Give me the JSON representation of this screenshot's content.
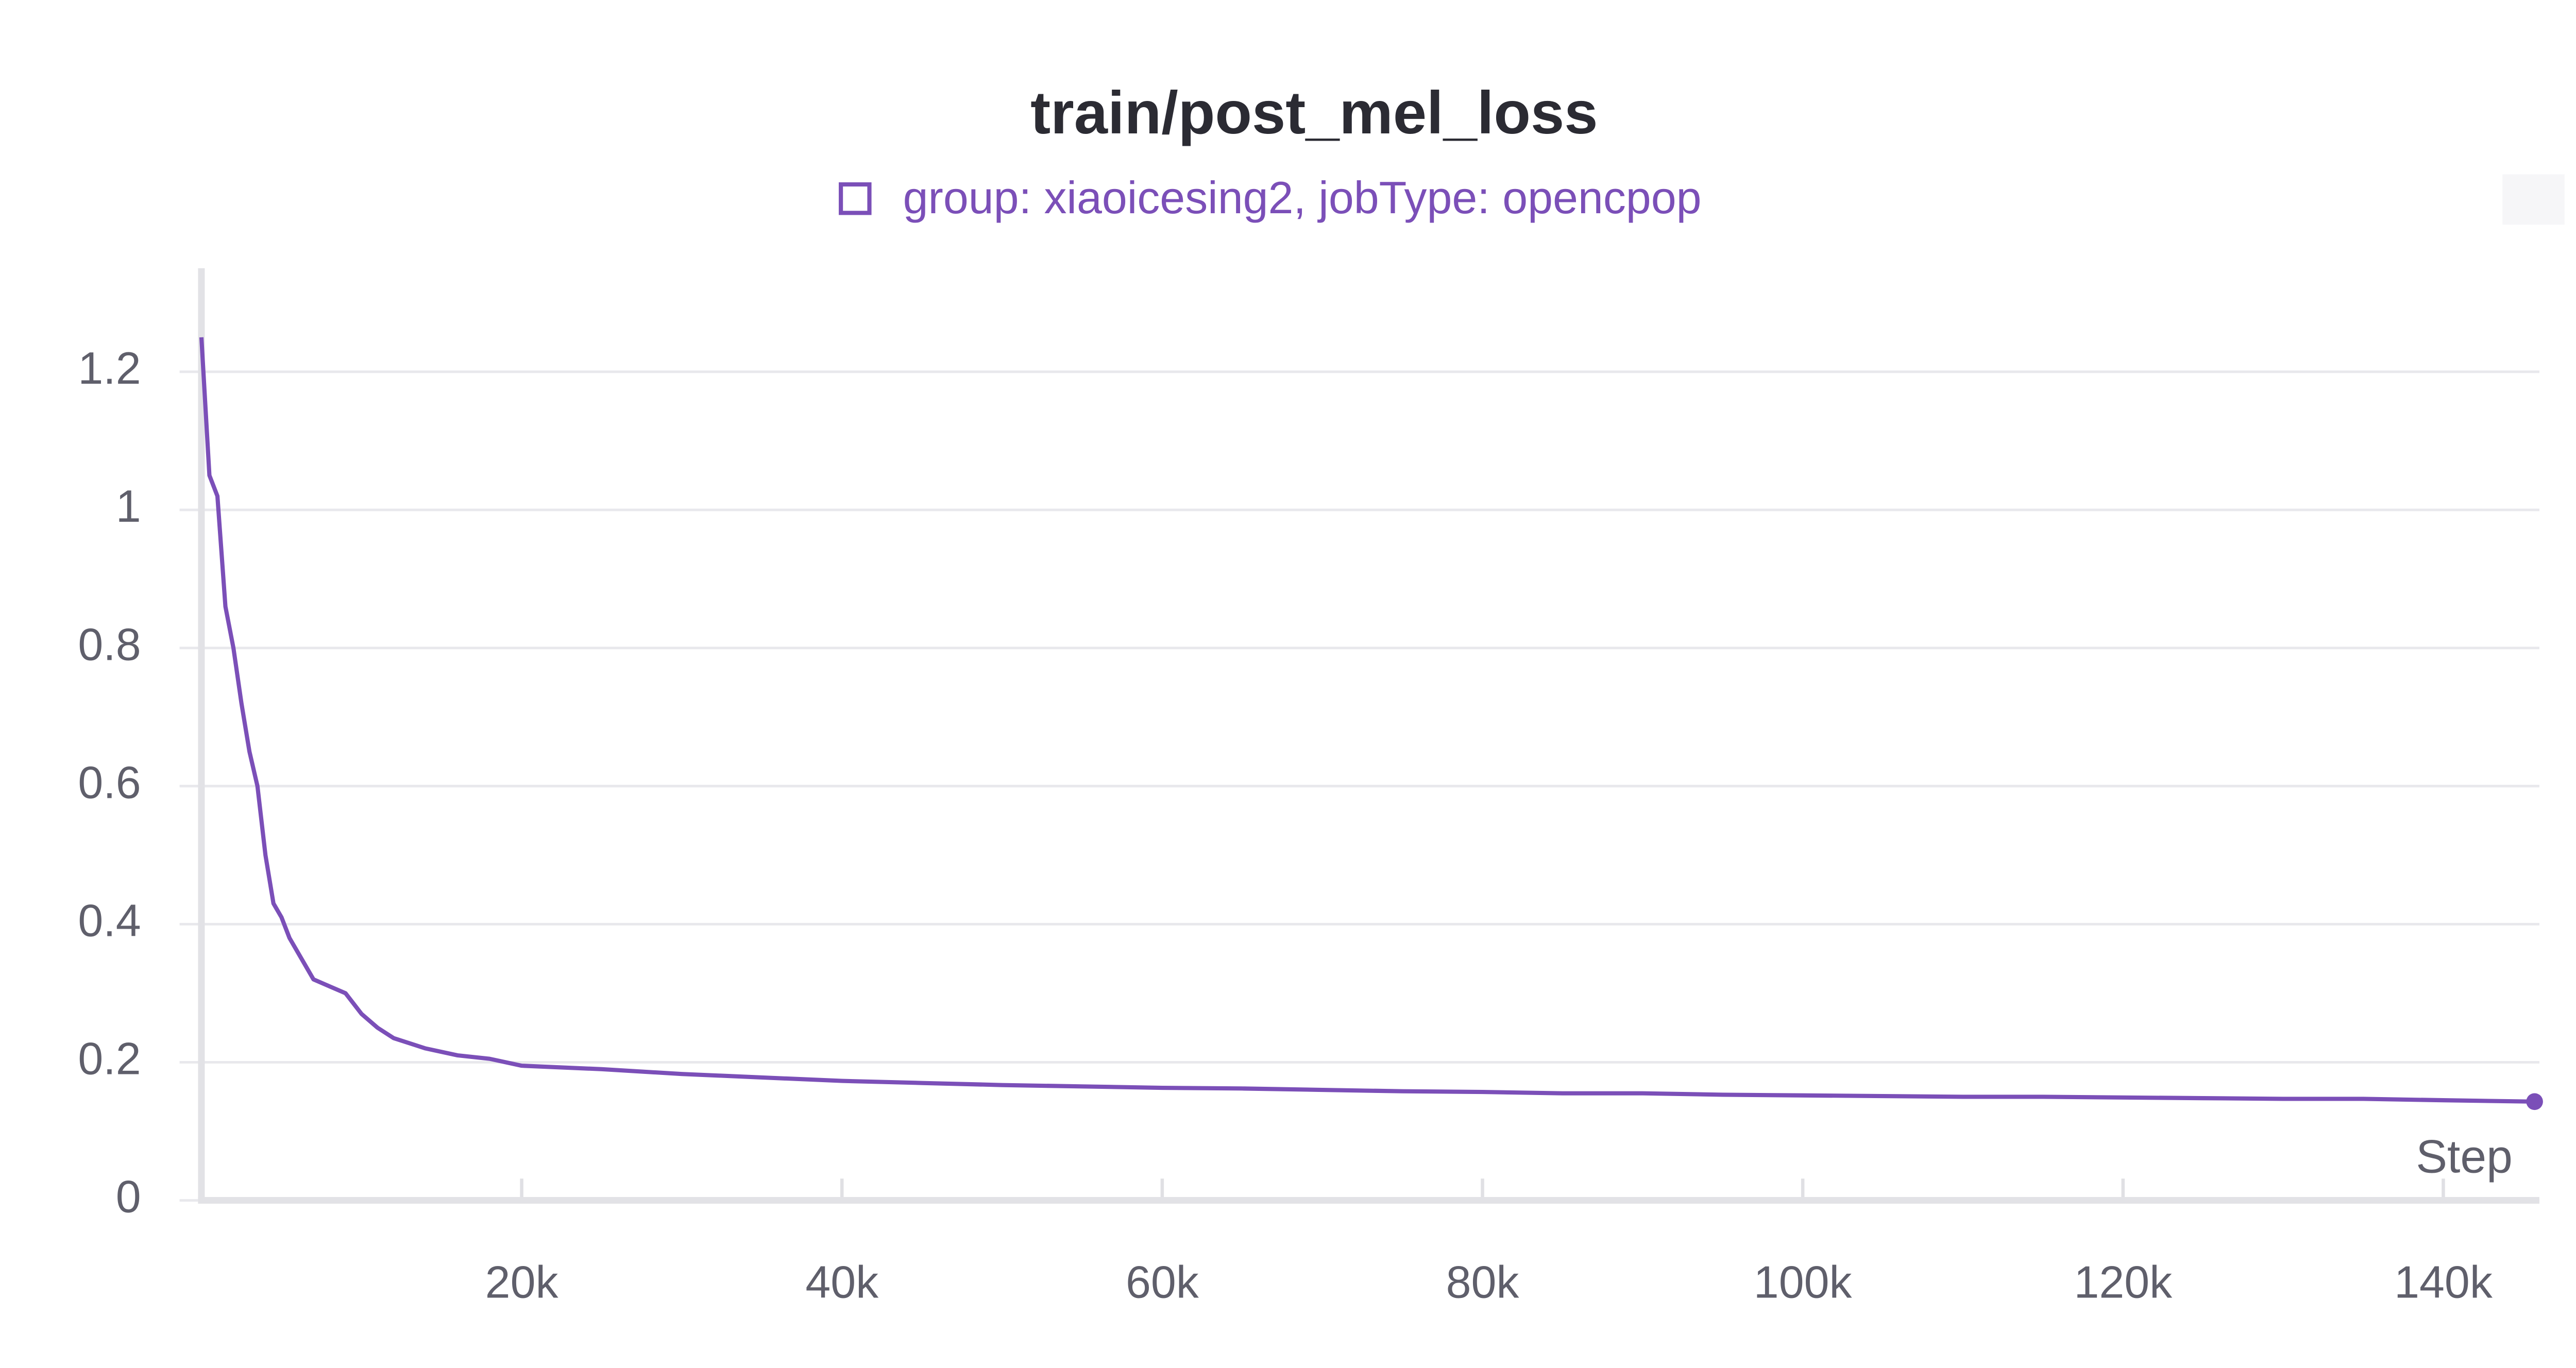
{
  "chart_data": {
    "type": "line",
    "title": "train/post_mel_loss",
    "x_label": "Step",
    "x": [
      0,
      500,
      1000,
      1500,
      2000,
      2500,
      3000,
      3500,
      4000,
      4500,
      5000,
      5500,
      6000,
      7000,
      8000,
      9000,
      10000,
      11000,
      12000,
      14000,
      16000,
      18000,
      20000,
      25000,
      30000,
      35000,
      40000,
      45000,
      50000,
      55000,
      60000,
      65000,
      70000,
      75000,
      80000,
      85000,
      90000,
      95000,
      100000,
      105000,
      110000,
      115000,
      120000,
      125000,
      130000,
      135000,
      140000,
      145700
    ],
    "series": [
      {
        "name": "group: xiaoicesing2, jobType: opencpop",
        "color": "#7b4fb8",
        "values": [
          1.25,
          1.05,
          1.02,
          0.86,
          0.8,
          0.72,
          0.65,
          0.6,
          0.5,
          0.43,
          0.41,
          0.38,
          0.36,
          0.32,
          0.31,
          0.3,
          0.27,
          0.25,
          0.235,
          0.22,
          0.21,
          0.205,
          0.195,
          0.19,
          0.183,
          0.178,
          0.173,
          0.17,
          0.167,
          0.165,
          0.163,
          0.162,
          0.16,
          0.158,
          0.157,
          0.155,
          0.155,
          0.153,
          0.152,
          0.151,
          0.15,
          0.15,
          0.149,
          0.148,
          0.147,
          0.147,
          0.145,
          0.143
        ]
      }
    ],
    "xlim": [
      0,
      146000
    ],
    "ylim": [
      0,
      1.35
    ],
    "xticks": [
      {
        "value": 20000,
        "label": "20k"
      },
      {
        "value": 40000,
        "label": "40k"
      },
      {
        "value": 60000,
        "label": "60k"
      },
      {
        "value": 80000,
        "label": "80k"
      },
      {
        "value": 100000,
        "label": "100k"
      },
      {
        "value": 120000,
        "label": "120k"
      },
      {
        "value": 140000,
        "label": "140k"
      }
    ],
    "yticks": [
      0,
      0.2,
      0.4,
      0.6,
      0.8,
      1,
      1.2
    ],
    "grid": true
  }
}
